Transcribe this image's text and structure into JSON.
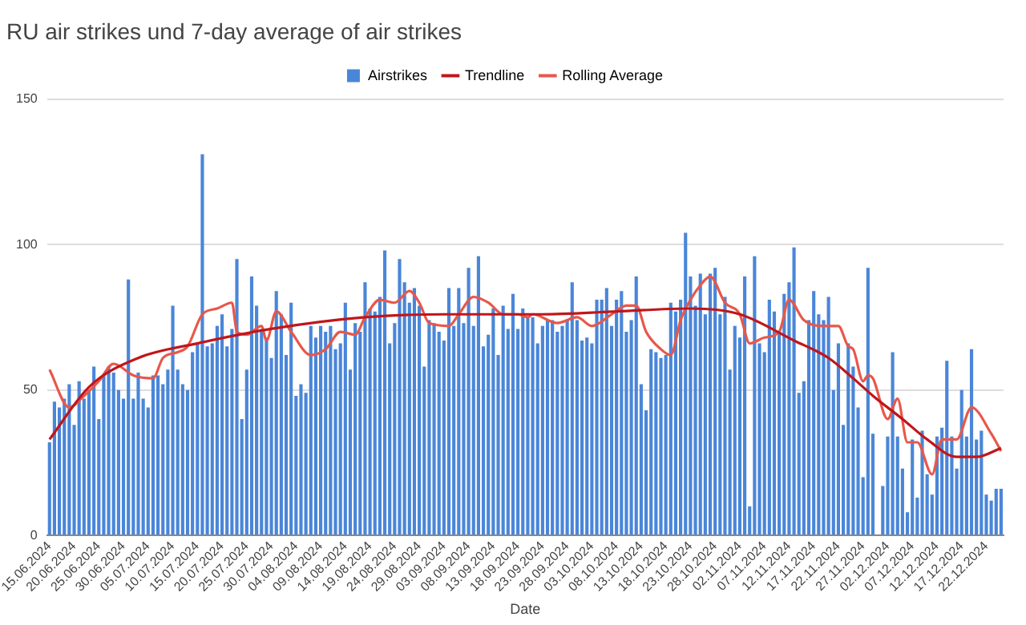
{
  "chart_data": {
    "type": "bar",
    "title": "RU air strikes und 7-day average of air strikes",
    "xlabel": "Date",
    "categories": [
      "15.06.2024",
      null,
      null,
      null,
      null,
      "20.06.2024",
      null,
      null,
      null,
      null,
      "25.06.2024",
      null,
      null,
      null,
      null,
      "30.06.2024",
      null,
      null,
      null,
      null,
      "05.07.2024",
      null,
      null,
      null,
      null,
      "10.07.2024",
      null,
      null,
      null,
      null,
      "15.07.2024",
      null,
      null,
      null,
      null,
      "20.07.2024",
      null,
      null,
      null,
      null,
      "25.07.2024",
      null,
      null,
      null,
      null,
      "30.07.2024",
      null,
      null,
      null,
      null,
      "04.08.2024",
      null,
      null,
      null,
      null,
      "09.08.2024",
      null,
      null,
      null,
      null,
      "14.08.2024",
      null,
      null,
      null,
      null,
      "19.08.2024",
      null,
      null,
      null,
      null,
      "24.08.2024",
      null,
      null,
      null,
      null,
      "29.08.2024",
      null,
      null,
      null,
      null,
      "03.09.2024",
      null,
      null,
      null,
      null,
      "08.09.2024",
      null,
      null,
      null,
      null,
      "13.09.2024",
      null,
      null,
      null,
      null,
      "18.09.2024",
      null,
      null,
      null,
      null,
      "23.09.2024",
      null,
      null,
      null,
      null,
      "28.09.2024",
      null,
      null,
      null,
      null,
      "03.10.2024",
      null,
      null,
      null,
      null,
      "08.10.2024",
      null,
      null,
      null,
      null,
      "13.10.2024",
      null,
      null,
      null,
      null,
      "18.10.2024",
      null,
      null,
      null,
      null,
      "23.10.2024",
      null,
      null,
      null,
      null,
      "28.10.2024",
      null,
      null,
      null,
      null,
      "02.11.2024",
      null,
      null,
      null,
      null,
      "07.11.2024",
      null,
      null,
      null,
      null,
      "12.11.2024",
      null,
      null,
      null,
      null,
      "17.11.2024",
      null,
      null,
      null,
      null,
      "22.11.2024",
      null,
      null,
      null,
      null,
      "27.11.2024",
      null,
      null,
      null,
      null,
      "02.12.2024",
      null,
      null,
      null,
      null,
      "07.12.2024",
      null,
      null,
      null,
      null,
      "12.12.2024",
      null,
      null,
      null,
      null,
      "17.12.2024",
      null,
      null,
      null,
      null,
      "22.12.2024",
      null,
      null,
      null
    ],
    "series": [
      {
        "name": "Airstrikes",
        "color": "#4a86d8",
        "values": [
          32,
          46,
          44,
          47,
          52,
          38,
          53,
          47,
          50,
          58,
          40,
          55,
          58,
          56,
          50,
          47,
          88,
          47,
          56,
          47,
          44,
          55,
          55,
          52,
          57,
          79,
          57,
          52,
          50,
          63,
          66,
          131,
          65,
          66,
          72,
          76,
          65,
          71,
          95,
          40,
          57,
          89,
          79,
          71,
          68,
          61,
          84,
          76,
          62,
          80,
          48,
          52,
          49,
          72,
          68,
          72,
          70,
          72,
          64,
          66,
          80,
          57,
          73,
          70,
          87,
          78,
          77,
          82,
          98,
          66,
          73,
          95,
          87,
          80,
          85,
          79,
          58,
          74,
          73,
          70,
          67,
          85,
          72,
          85,
          73,
          92,
          72,
          96,
          65,
          69,
          78,
          62,
          79,
          71,
          83,
          71,
          78,
          75,
          75,
          66,
          72,
          74,
          74,
          70,
          72,
          74,
          87,
          74,
          67,
          68,
          66,
          81,
          81,
          85,
          72,
          81,
          84,
          70,
          74,
          89,
          52,
          43,
          64,
          63,
          61,
          62,
          80,
          77,
          81,
          104,
          89,
          79,
          90,
          76,
          90,
          92,
          76,
          82,
          57,
          72,
          68,
          89,
          10,
          96,
          66,
          63,
          81,
          77,
          70,
          83,
          87,
          99,
          49,
          53,
          74,
          84,
          76,
          74,
          82,
          50,
          66,
          38,
          66,
          58,
          44,
          20,
          92,
          35,
          null,
          17,
          34,
          63,
          34,
          23,
          8,
          33,
          13,
          36,
          21,
          14,
          34,
          37,
          60,
          34,
          23,
          50,
          34,
          64,
          33,
          36,
          14,
          12,
          16,
          16
        ]
      },
      {
        "name": "Trendline",
        "type": "line",
        "color": "#c0161b",
        "values": [
          33,
          null,
          null,
          null,
          null,
          null,
          null,
          null,
          51,
          null,
          null,
          null,
          null,
          null,
          null,
          null,
          null,
          null,
          61,
          null,
          null,
          null,
          null,
          null,
          null,
          null,
          null,
          null,
          null,
          null,
          66,
          null,
          null,
          null,
          null,
          null,
          null,
          null,
          null,
          null,
          null,
          null,
          null,
          null,
          null,
          71,
          null,
          null,
          null,
          null,
          null,
          null,
          null,
          null,
          null,
          null,
          null,
          null,
          null,
          null,
          null,
          null,
          null,
          null,
          75,
          null,
          null,
          null,
          null,
          null,
          null,
          null,
          null,
          null,
          null,
          null,
          null,
          null,
          null,
          null,
          76,
          null,
          null,
          null,
          null,
          null,
          null,
          null,
          null,
          null,
          null,
          null,
          null,
          null,
          null,
          null,
          null,
          null,
          null,
          null,
          76,
          null,
          null,
          null,
          null,
          null,
          null,
          null,
          null,
          null,
          null,
          null,
          null,
          null,
          null,
          77,
          null,
          null,
          null,
          null,
          null,
          null,
          null,
          null,
          null,
          null,
          null,
          null,
          null,
          null,
          78,
          null,
          null,
          null,
          null,
          null,
          null,
          null,
          null,
          null,
          76,
          null,
          null,
          null,
          null,
          null,
          null,
          null,
          null,
          null,
          null,
          67,
          null,
          null,
          null,
          null,
          null,
          null,
          61,
          null,
          null,
          null,
          null,
          54,
          null,
          null,
          null,
          48,
          null,
          null,
          null,
          null,
          null,
          40,
          null,
          null,
          null,
          null,
          33,
          null,
          null,
          null,
          null,
          null,
          27,
          null,
          null,
          null,
          27,
          null,
          null,
          null,
          null,
          30
        ]
      },
      {
        "name": "Rolling Average",
        "type": "line",
        "color": "#e8574a",
        "values": [
          57,
          null,
          null,
          null,
          44,
          null,
          null,
          48,
          null,
          null,
          53,
          null,
          null,
          59,
          null,
          null,
          null,
          55,
          null,
          null,
          null,
          54,
          null,
          61,
          null,
          null,
          63,
          null,
          65,
          null,
          null,
          76,
          null,
          null,
          78,
          null,
          null,
          80,
          70,
          null,
          69,
          null,
          null,
          72,
          67,
          null,
          77,
          null,
          null,
          70,
          null,
          null,
          null,
          62,
          null,
          null,
          64,
          null,
          null,
          70,
          null,
          null,
          69,
          null,
          75,
          null,
          null,
          81,
          null,
          null,
          80,
          null,
          null,
          84,
          null,
          80,
          null,
          73,
          null,
          null,
          null,
          72,
          null,
          76,
          null,
          null,
          82,
          null,
          null,
          80,
          null,
          null,
          76,
          null,
          null,
          76,
          null,
          75,
          76,
          null,
          null,
          null,
          null,
          73,
          null,
          null,
          null,
          75,
          null,
          null,
          72,
          null,
          null,
          null,
          76,
          null,
          null,
          79,
          null,
          79,
          null,
          70,
          null,
          null,
          64,
          null,
          62,
          null,
          74,
          null,
          81,
          null,
          86,
          null,
          89,
          null,
          null,
          80,
          null,
          null,
          76,
          null,
          66,
          null,
          null,
          68,
          null,
          null,
          70,
          null,
          81,
          null,
          null,
          74,
          null,
          null,
          null,
          72,
          null,
          null,
          72,
          null,
          65,
          64,
          null,
          53,
          55,
          54,
          null,
          null,
          40,
          null,
          47,
          null,
          32,
          null,
          32,
          null,
          null,
          21,
          null,
          33,
          null,
          null,
          33,
          null,
          null,
          44,
          null,
          null,
          null,
          35,
          null,
          29
        ]
      }
    ],
    "ylim": [
      0,
      150
    ],
    "yticks": [
      0,
      50,
      100,
      150
    ],
    "grid": "y",
    "legend": "top",
    "marker": "none"
  }
}
